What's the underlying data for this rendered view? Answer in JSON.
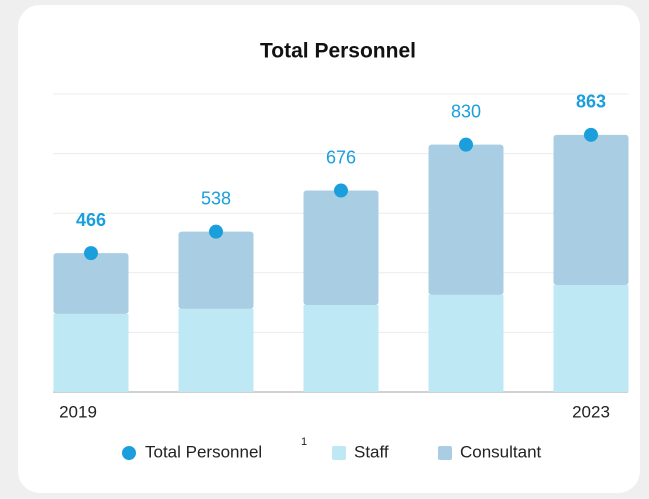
{
  "chart_data": {
    "type": "stacked_bar_with_total",
    "title": "Total Personnel",
    "categories": [
      "2019",
      null,
      null,
      null,
      "2023"
    ],
    "series": [
      {
        "name": "Staff",
        "color": "#bde8f4",
        "values": [
          262,
          279,
          292,
          326,
          359
        ]
      },
      {
        "name": "Consultant",
        "color": "#a9cde3",
        "values": [
          204,
          259,
          384,
          504,
          504
        ]
      }
    ],
    "total": {
      "name": "Total Personnel",
      "footnote": "1",
      "color": "#1a9fdc",
      "values": [
        466,
        538,
        676,
        830,
        863
      ],
      "bold": [
        true,
        false,
        false,
        false,
        true
      ]
    },
    "ylim": [
      0,
      1000
    ],
    "yticks": [
      0,
      200,
      400,
      600,
      800,
      1000
    ],
    "grid": true
  }
}
